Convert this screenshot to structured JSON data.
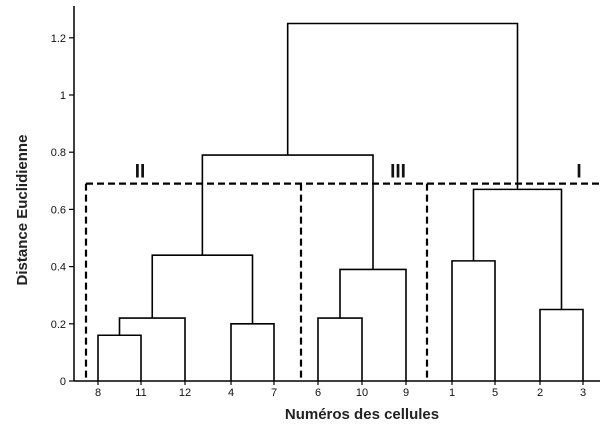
{
  "chart_data": {
    "type": "dendrogram",
    "xlabel": "Numéros des cellules",
    "ylabel": "Distance Euclidienne",
    "ylim": [
      0,
      1.3
    ],
    "yticks": [
      "0",
      "0.2",
      "0.4",
      "0.6",
      "0.8",
      "1",
      "1.2"
    ],
    "leaf_order": [
      "8",
      "11",
      "12",
      "4",
      "7",
      "6",
      "10",
      "9",
      "1",
      "5",
      "2",
      "3"
    ],
    "merges": [
      {
        "left": "8",
        "right": "11",
        "height": 0.16
      },
      {
        "left": "8-11",
        "right": "12",
        "height": 0.22
      },
      {
        "left": "4",
        "right": "7",
        "height": 0.2
      },
      {
        "left": "8-11-12",
        "right": "4-7",
        "height": 0.44
      },
      {
        "left": "6",
        "right": "10",
        "height": 0.22
      },
      {
        "left": "6-10",
        "right": "9",
        "height": 0.39
      },
      {
        "left": "cluster II",
        "right": "cluster III",
        "height": 0.79
      },
      {
        "left": "1",
        "right": "5",
        "height": 0.42
      },
      {
        "left": "2",
        "right": "3",
        "height": 0.25
      },
      {
        "left": "1-5",
        "right": "2-3",
        "height": 0.67
      },
      {
        "left": "II-III",
        "right": "I",
        "height": 1.25
      }
    ],
    "cut_height": 0.69,
    "clusters": [
      {
        "label": "II",
        "leaves": [
          "8",
          "11",
          "12",
          "4",
          "7"
        ]
      },
      {
        "label": "III",
        "leaves": [
          "6",
          "10",
          "9"
        ]
      },
      {
        "label": "I",
        "leaves": [
          "1",
          "5",
          "2",
          "3"
        ]
      }
    ]
  }
}
